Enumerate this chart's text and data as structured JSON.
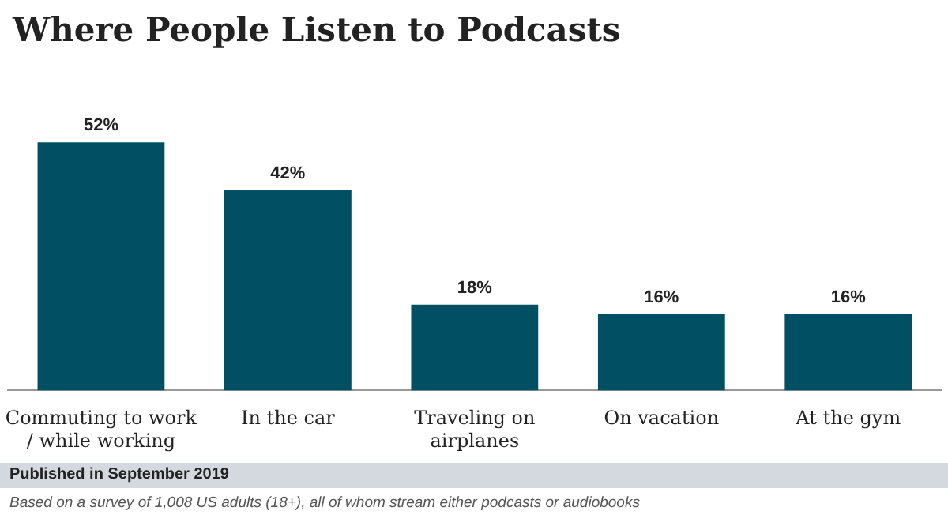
{
  "chart_data": {
    "type": "bar",
    "title": "Where People Listen to Podcasts",
    "categories": [
      "Commuting to work / while working",
      "In the car",
      "Traveling on airplanes",
      "On vacation",
      "At the gym"
    ],
    "values": [
      52,
      42,
      18,
      16,
      16
    ],
    "color": "#004f63",
    "data_labels": true,
    "value_labels": [
      "52%",
      "42%",
      "18%",
      "16%",
      "16%"
    ],
    "grid": false,
    "legend": false,
    "annotations": [
      "Published in September 2019",
      "Based on a survey of 1,008 US adults (18+), all of whom stream either podcasts or audiobooks"
    ]
  }
}
